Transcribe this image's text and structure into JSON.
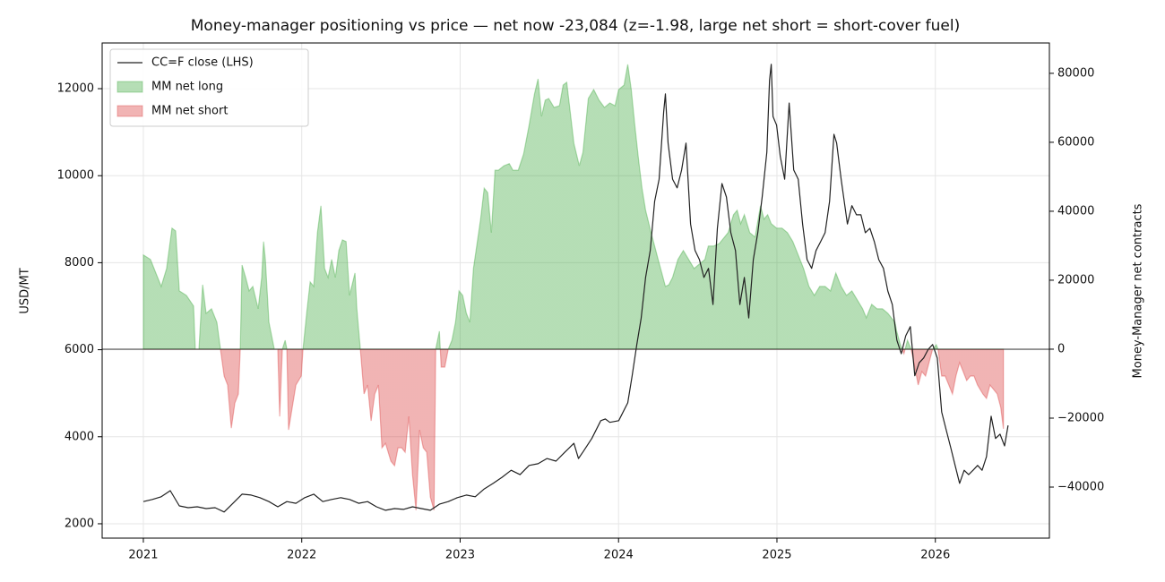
{
  "chart_data": {
    "type": "line",
    "title": "Money-manager positioning vs price — net now -23,084 (z=-1.98, large net short = short-cover fuel)",
    "ylabel": "USD/MT",
    "y2label": "Money-Manager net contracts",
    "xlim": [
      2020.74,
      2026.72
    ],
    "xticks": [
      2021,
      2022,
      2023,
      2024,
      2025,
      2026
    ],
    "ylim": [
      1670,
      13050
    ],
    "yticks": [
      2000,
      4000,
      6000,
      8000,
      10000,
      12000
    ],
    "y2lim": [
      -54800,
      88800
    ],
    "y2ticks": [
      {
        "value": -40000,
        "label": "−40000"
      },
      {
        "value": -20000,
        "label": "−20000"
      },
      0,
      20000,
      40000,
      60000,
      80000
    ],
    "y2_ref_line": 0,
    "grid": true,
    "legend": "upper left",
    "series": [
      {
        "name": "CC=F close (LHS)",
        "color": "#222222",
        "x": [
          2021.0,
          2021.057,
          2021.113,
          2021.17,
          2021.227,
          2021.283,
          2021.34,
          2021.396,
          2021.453,
          2021.51,
          2021.566,
          2021.623,
          2021.68,
          2021.736,
          2021.793,
          2021.849,
          2021.906,
          2021.963,
          2022.019,
          2022.076,
          2022.133,
          2022.189,
          2022.246,
          2022.302,
          2022.359,
          2022.416,
          2022.472,
          2022.529,
          2022.586,
          2022.642,
          2022.699,
          2022.756,
          2022.812,
          2022.869,
          2022.925,
          2022.982,
          2023.039,
          2023.095,
          2023.152,
          2023.209,
          2023.265,
          2023.322,
          2023.378,
          2023.435,
          2023.492,
          2023.548,
          2023.605,
          2023.662,
          2023.718,
          2023.747,
          2023.775,
          2023.831,
          2023.888,
          2023.916,
          2023.945,
          2024.001,
          2024.058,
          2024.086,
          2024.115,
          2024.143,
          2024.171,
          2024.2,
          2024.228,
          2024.256,
          2024.285,
          2024.296,
          2024.313,
          2024.341,
          2024.37,
          2024.398,
          2024.426,
          2024.455,
          2024.483,
          2024.511,
          2024.539,
          2024.568,
          2024.596,
          2024.624,
          2024.653,
          2024.681,
          2024.709,
          2024.738,
          2024.766,
          2024.794,
          2024.822,
          2024.851,
          2024.879,
          2024.907,
          2024.936,
          2024.953,
          2024.964,
          2024.975,
          2024.998,
          2025.021,
          2025.049,
          2025.077,
          2025.106,
          2025.134,
          2025.162,
          2025.19,
          2025.219,
          2025.247,
          2025.275,
          2025.304,
          2025.332,
          2025.36,
          2025.377,
          2025.405,
          2025.445,
          2025.473,
          2025.502,
          2025.53,
          2025.558,
          2025.587,
          2025.615,
          2025.643,
          2025.672,
          2025.7,
          2025.728,
          2025.757,
          2025.785,
          2025.813,
          2025.842,
          2025.87,
          2025.898,
          2025.926,
          2025.955,
          2025.983,
          2026.012,
          2026.04,
          2026.068,
          2026.097,
          2026.125,
          2026.153,
          2026.182,
          2026.21,
          2026.238,
          2026.267,
          2026.295,
          2026.323,
          2026.352,
          2026.38,
          2026.408,
          2026.437,
          2026.459
        ],
        "values": [
          2510,
          2560,
          2620,
          2760,
          2410,
          2370,
          2390,
          2350,
          2370,
          2270,
          2470,
          2680,
          2660,
          2600,
          2510,
          2390,
          2510,
          2470,
          2600,
          2680,
          2510,
          2560,
          2600,
          2560,
          2470,
          2510,
          2390,
          2310,
          2350,
          2330,
          2390,
          2350,
          2310,
          2450,
          2510,
          2600,
          2660,
          2620,
          2800,
          2930,
          3070,
          3230,
          3130,
          3340,
          3380,
          3500,
          3440,
          3650,
          3850,
          3500,
          3650,
          3960,
          4370,
          4410,
          4330,
          4370,
          4780,
          5400,
          6120,
          6730,
          7660,
          8280,
          9410,
          9920,
          11470,
          11880,
          10750,
          9920,
          9720,
          10130,
          10750,
          8890,
          8280,
          8070,
          7660,
          7870,
          7040,
          8790,
          9820,
          9510,
          8690,
          8280,
          7040,
          7660,
          6730,
          8070,
          8690,
          9510,
          10540,
          12190,
          12560,
          11360,
          11160,
          10440,
          9920,
          11670,
          10130,
          9920,
          8890,
          8070,
          7870,
          8280,
          8480,
          8690,
          9410,
          10950,
          10750,
          9920,
          8890,
          9310,
          9100,
          9100,
          8690,
          8790,
          8480,
          8070,
          7870,
          7350,
          7040,
          6220,
          5910,
          6320,
          6530,
          5400,
          5700,
          5810,
          6010,
          6120,
          5810,
          4570,
          4160,
          3750,
          3340,
          2930,
          3230,
          3130,
          3230,
          3340,
          3230,
          3540,
          4470,
          3960,
          4060,
          3790,
          4260
        ]
      },
      {
        "name": "MM net long",
        "color": "#2ca02c",
        "negative_name": "MM net short",
        "negative_color": "#d62728",
        "axis": "y2",
        "x": [
          2021.0,
          2021.045,
          2021.079,
          2021.113,
          2021.147,
          2021.181,
          2021.204,
          2021.227,
          2021.272,
          2021.317,
          2021.328,
          2021.351,
          2021.374,
          2021.396,
          2021.43,
          2021.464,
          2021.487,
          2021.51,
          2021.532,
          2021.555,
          2021.578,
          2021.6,
          2021.612,
          2021.623,
          2021.646,
          2021.668,
          2021.691,
          2021.725,
          2021.747,
          2021.759,
          2021.77,
          2021.793,
          2021.827,
          2021.849,
          2021.861,
          2021.878,
          2021.895,
          2021.906,
          2021.917,
          2021.94,
          2021.963,
          2021.997,
          2022.008,
          2022.031,
          2022.053,
          2022.076,
          2022.099,
          2022.121,
          2022.144,
          2022.166,
          2022.189,
          2022.212,
          2022.234,
          2022.257,
          2022.28,
          2022.302,
          2022.336,
          2022.348,
          2022.37,
          2022.393,
          2022.416,
          2022.438,
          2022.461,
          2022.484,
          2022.506,
          2022.529,
          2022.563,
          2022.586,
          2022.608,
          2022.631,
          2022.653,
          2022.676,
          2022.699,
          2022.721,
          2022.744,
          2022.767,
          2022.789,
          2022.812,
          2022.835,
          2022.846,
          2022.869,
          2022.88,
          2022.903,
          2022.925,
          2022.948,
          2022.971,
          2022.993,
          2023.016,
          2023.039,
          2023.061,
          2023.084,
          2023.129,
          2023.152,
          2023.174,
          2023.197,
          2023.22,
          2023.242,
          2023.276,
          2023.31,
          2023.333,
          2023.367,
          2023.401,
          2023.435,
          2023.469,
          2023.492,
          2023.514,
          2023.537,
          2023.559,
          2023.593,
          2023.627,
          2023.65,
          2023.673,
          2023.695,
          2023.718,
          2023.752,
          2023.775,
          2023.809,
          2023.843,
          2023.877,
          2023.911,
          2023.945,
          2023.978,
          2024.001,
          2024.035,
          2024.058,
          2024.08,
          2024.103,
          2024.126,
          2024.148,
          2024.171,
          2024.205,
          2024.228,
          2024.25,
          2024.273,
          2024.296,
          2024.318,
          2024.341,
          2024.375,
          2024.409,
          2024.443,
          2024.477,
          2024.511,
          2024.545,
          2024.567,
          2024.601,
          2024.635,
          2024.669,
          2024.692,
          2024.726,
          2024.749,
          2024.771,
          2024.794,
          2024.828,
          2024.862,
          2024.896,
          2024.918,
          2024.941,
          2024.964,
          2024.998,
          2025.032,
          2025.066,
          2025.1,
          2025.134,
          2025.168,
          2025.202,
          2025.236,
          2025.27,
          2025.304,
          2025.338,
          2025.372,
          2025.405,
          2025.439,
          2025.473,
          2025.507,
          2025.541,
          2025.564,
          2025.598,
          2025.632,
          2025.666,
          2025.7,
          2025.722,
          2025.745,
          2025.756,
          2025.779,
          2025.802,
          2025.824,
          2025.847,
          2025.87,
          2025.892,
          2025.915,
          2025.938,
          2025.96,
          2025.983,
          2026.006,
          2026.017,
          2026.04,
          2026.062,
          2026.085,
          2026.108,
          2026.13,
          2026.153,
          2026.176,
          2026.198,
          2026.221,
          2026.244,
          2026.266,
          2026.3,
          2026.323,
          2026.345,
          2026.368,
          2026.391,
          2026.413,
          2026.43
        ],
        "values": [
          27300,
          26000,
          22100,
          18200,
          23400,
          35100,
          34300,
          16900,
          15600,
          12500,
          0,
          0,
          18700,
          10400,
          11700,
          7800,
          0,
          -7800,
          -10400,
          -22900,
          -15600,
          -13000,
          0,
          24400,
          20800,
          16900,
          18200,
          11700,
          20800,
          31200,
          26000,
          7800,
          0,
          0,
          -19500,
          0,
          2600,
          0,
          -23400,
          -16900,
          -10400,
          -7800,
          0,
          10400,
          19500,
          18200,
          33800,
          41600,
          23400,
          20800,
          26000,
          20800,
          28600,
          31700,
          31200,
          15600,
          22100,
          11700,
          0,
          -13000,
          -10400,
          -20800,
          -13000,
          -10400,
          -28600,
          -27300,
          -32500,
          -33800,
          -28600,
          -28600,
          -29900,
          -19500,
          -36400,
          -46700,
          -23400,
          -28600,
          -29900,
          -42900,
          -46700,
          0,
          5200,
          -5200,
          -5200,
          0,
          2600,
          7800,
          16900,
          15600,
          10400,
          7800,
          23400,
          37700,
          46700,
          45400,
          33800,
          51900,
          51900,
          53200,
          53800,
          51900,
          51900,
          56600,
          64900,
          74000,
          78400,
          67500,
          72200,
          72700,
          70100,
          70600,
          76600,
          77400,
          68800,
          59700,
          53200,
          57100,
          72700,
          75300,
          72200,
          70100,
          71400,
          70600,
          75300,
          76600,
          82600,
          75300,
          64900,
          55100,
          46700,
          40300,
          33800,
          29900,
          26000,
          22100,
          18200,
          18700,
          20800,
          26000,
          28600,
          26000,
          23400,
          24700,
          26000,
          29900,
          29900,
          30600,
          32500,
          33800,
          39000,
          40300,
          36400,
          39000,
          33800,
          32500,
          41600,
          37700,
          39000,
          36400,
          35100,
          35100,
          33800,
          31200,
          27300,
          23400,
          18200,
          15600,
          18200,
          18200,
          16900,
          22100,
          18200,
          15600,
          16900,
          14300,
          11700,
          9100,
          13000,
          11700,
          11700,
          10400,
          9100,
          7800,
          5200,
          1300,
          -1300,
          2600,
          0,
          -5200,
          -10400,
          -6500,
          -7800,
          -3900,
          0,
          1300,
          0,
          -7800,
          -7800,
          -10400,
          -13000,
          -7800,
          -3900,
          -6500,
          -9100,
          -7800,
          -7800,
          -10400,
          -13000,
          -14300,
          -10400,
          -11700,
          -13000,
          -16900,
          -23084
        ]
      }
    ]
  }
}
